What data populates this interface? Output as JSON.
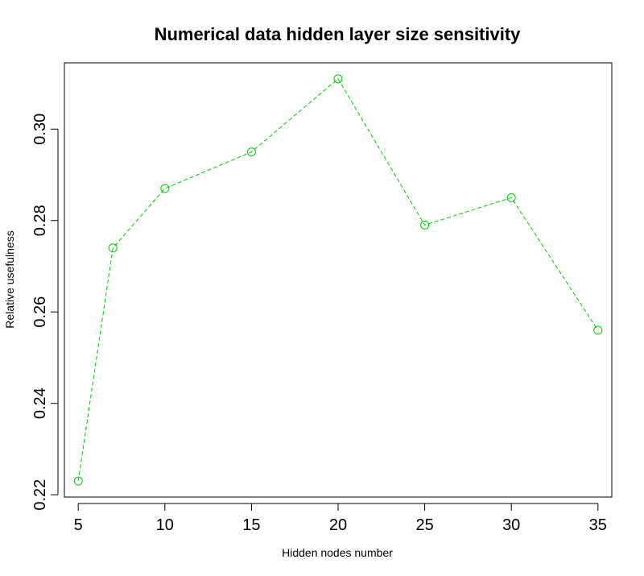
{
  "chart_data": {
    "type": "line",
    "title": "Numerical data hidden layer size sensitivity",
    "xlabel": "Hidden nodes number",
    "ylabel": "Relative usefulness",
    "x": [
      5,
      7,
      10,
      15,
      20,
      25,
      30,
      35
    ],
    "series": [
      {
        "values": [
          0.223,
          0.274,
          0.287,
          0.295,
          0.311,
          0.279,
          0.285,
          0.256
        ],
        "color": "#00cc00",
        "line_style": "dashed",
        "marker": "open-circle"
      }
    ],
    "xticks": [
      5,
      10,
      15,
      20,
      25,
      30,
      35
    ],
    "xtick_labels": [
      "5",
      "10",
      "15",
      "20",
      "25",
      "30",
      "35"
    ],
    "yticks": [
      0.22,
      0.24,
      0.26,
      0.28,
      0.3
    ],
    "ytick_labels": [
      "0.22",
      "0.24",
      "0.26",
      "0.28",
      "0.30"
    ],
    "xlim": [
      4.2,
      35.8
    ],
    "ylim": [
      0.2195,
      0.3145
    ],
    "grid": false,
    "box": true
  }
}
